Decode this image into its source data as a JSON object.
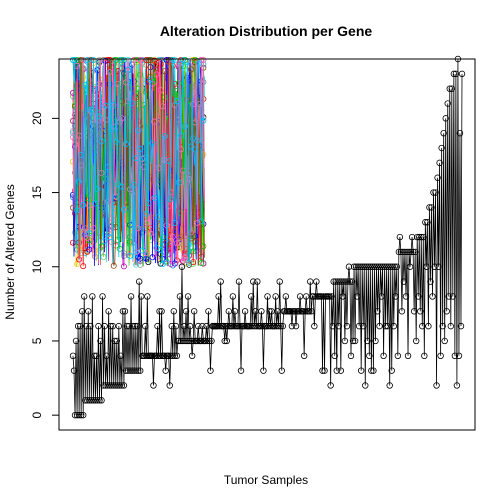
{
  "chart_data": {
    "type": "line",
    "title": "Alteration Distribution per Gene",
    "xlabel": "Tumor Samples",
    "ylabel": "Number of Altered Genes",
    "ylim": [
      -1,
      24
    ],
    "yticks": [
      0,
      5,
      10,
      15,
      20
    ],
    "grid": false,
    "marker": "open-circle",
    "main_series": {
      "color": "#000000",
      "values": [
        4,
        3,
        0,
        5,
        0,
        6,
        0,
        6,
        0,
        7,
        0,
        8,
        1,
        6,
        1,
        7,
        1,
        6,
        1,
        8,
        1,
        4,
        1,
        4,
        1,
        6,
        1,
        5,
        1,
        8,
        2,
        6,
        2,
        4,
        2,
        7,
        2,
        6,
        2,
        6,
        2,
        5,
        2,
        5,
        2,
        6,
        2,
        4,
        2,
        7,
        2,
        7,
        3,
        6,
        3,
        6,
        3,
        8,
        3,
        6,
        3,
        6,
        3,
        6,
        3,
        9,
        3,
        8,
        4,
        4,
        4,
        6,
        4,
        8,
        4,
        4,
        4,
        4,
        4,
        2,
        4,
        4,
        4,
        6,
        4,
        7,
        4,
        7,
        4,
        4,
        4,
        3,
        4,
        4,
        4,
        2,
        4,
        6,
        4,
        7,
        4,
        6,
        4,
        5,
        5,
        8,
        5,
        10,
        5,
        6,
        5,
        7,
        5,
        8,
        5,
        6,
        5,
        4,
        5,
        7,
        5,
        5,
        5,
        6,
        5,
        5,
        5,
        6,
        5,
        5,
        5,
        6,
        5,
        7,
        5,
        3,
        5,
        6,
        6,
        6,
        6,
        6,
        6,
        8,
        6,
        9,
        6,
        6,
        6,
        5,
        6,
        5,
        6,
        7,
        6,
        6,
        6,
        8,
        6,
        7,
        6,
        6,
        6,
        9,
        6,
        3,
        6,
        6,
        6,
        7,
        6,
        6,
        6,
        6,
        6,
        8,
        6,
        9,
        6,
        7,
        6,
        9,
        6,
        6,
        6,
        7,
        6,
        3,
        6,
        6,
        6,
        8,
        6,
        7,
        6,
        7,
        6,
        6,
        6,
        8,
        6,
        7,
        6,
        9,
        6,
        3,
        6,
        7,
        7,
        8,
        7,
        7,
        7,
        7,
        7,
        6,
        7,
        7,
        7,
        6,
        7,
        7,
        7,
        8,
        7,
        7,
        7,
        4,
        7,
        8,
        7,
        7,
        7,
        9,
        7,
        8,
        8,
        6,
        8,
        9,
        8,
        8,
        8,
        8,
        8,
        3,
        8,
        3,
        8,
        8,
        8,
        8,
        8,
        2,
        8,
        6,
        9,
        4,
        9,
        3,
        9,
        6,
        9,
        3,
        9,
        8,
        9,
        5,
        9,
        6,
        9,
        10,
        9,
        4,
        9,
        5,
        10,
        5,
        10,
        8,
        10,
        6,
        10,
        3,
        10,
        6,
        10,
        2,
        10,
        5,
        10,
        4,
        10,
        3,
        10,
        3,
        10,
        5,
        10,
        7,
        10,
        6,
        10,
        8,
        10,
        4,
        10,
        6,
        10,
        6,
        10,
        2,
        10,
        3,
        10,
        6,
        10,
        8,
        10,
        4,
        11,
        12,
        11,
        7,
        11,
        9,
        11,
        8,
        11,
        4,
        11,
        10,
        11,
        12,
        11,
        7,
        11,
        5,
        12,
        8,
        12,
        7,
        12,
        6,
        12,
        4,
        13,
        10,
        13,
        6,
        14,
        9,
        14,
        8,
        15,
        10,
        15,
        2,
        16,
        10,
        17,
        4,
        18,
        6,
        19,
        5,
        20,
        7,
        21,
        8,
        22,
        6,
        22,
        8,
        23,
        4,
        23,
        2,
        24,
        4,
        19,
        6,
        23
      ]
    },
    "dense_block": {
      "sample_count": 130,
      "series_count": 14,
      "y_range": [
        9,
        24
      ],
      "colors": [
        "#000000",
        "#DF536B",
        "#61D04F",
        "#2297E6",
        "#28E2E5",
        "#CD0BBC",
        "#F5C710",
        "#9E9E9E",
        "#FF0000",
        "#0000FF",
        "#00CD00",
        "#8B4513",
        "#FF69B4",
        "#00BFFF"
      ]
    }
  }
}
